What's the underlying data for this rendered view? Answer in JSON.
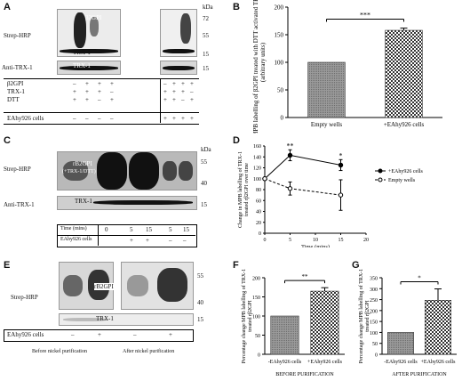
{
  "panels": {
    "A": {
      "letter": "A",
      "kda_unit": "kDa",
      "markers": [
        "72",
        "55",
        "15",
        "15"
      ],
      "row_labels": {
        "strep": "Strep-HRP",
        "anti": "Anti-TRX-1"
      },
      "band_labels": {
        "b2gpi": "β2GPI",
        "trx1": "TRX-1",
        "trx1_anti": "TRX-1"
      },
      "table_rows": [
        {
          "label": "β2GPI",
          "left": [
            "–",
            "+",
            "+",
            "+"
          ],
          "right": [
            "–",
            "+",
            "+",
            "+"
          ]
        },
        {
          "label": "TRX-1",
          "left": [
            "+",
            "+",
            "+",
            "–"
          ],
          "right": [
            "+",
            "+",
            "+",
            "–"
          ]
        },
        {
          "label": "DTT",
          "left": [
            "+",
            "+",
            "–",
            "+"
          ],
          "right": [
            "+",
            "+",
            "–",
            "+"
          ]
        },
        {
          "label": "EAhy926 cells",
          "left": [
            "–",
            "–",
            "–",
            "–"
          ],
          "right": [
            "+",
            "+",
            "+",
            "+"
          ]
        }
      ]
    },
    "C": {
      "letter": "C",
      "kda_unit": "kDa",
      "markers": [
        "55",
        "40",
        "15"
      ],
      "row_labels": {
        "strep": "Strep-HRP",
        "anti": "Anti-TRX-1"
      },
      "band_labels": {
        "rb2gpi": "rB2GPI",
        "rb2gpi_sub": "(+TRX-1/DTT)",
        "trx1": "TRX-1"
      },
      "table_rows": [
        {
          "label": "Time (mins)",
          "values": [
            "0",
            "5",
            "15",
            "5",
            "15"
          ]
        },
        {
          "label": "EAhy926 cells",
          "values": [
            "",
            "+",
            "+",
            "–",
            "–"
          ]
        }
      ]
    },
    "E": {
      "letter": "E",
      "row_label": "Strep-HRP",
      "markers": [
        "55",
        "40",
        "15"
      ],
      "band_labels": {
        "rb2gpi": "rB2GPI",
        "trx1": "TRX-1"
      },
      "cells_label": "EAhy926 cells",
      "cells_values": [
        "–",
        "+",
        "–",
        "+"
      ],
      "captions": [
        "Before nickel purification",
        "After nickel purification"
      ]
    }
  },
  "chart_data": [
    {
      "panel": "B",
      "type": "bar",
      "categories": [
        "Empty wells",
        "+EAhy926 cells"
      ],
      "values": [
        100,
        158
      ],
      "errors": [
        0,
        4
      ],
      "ylabel": "MPB labelling of β2GPI treated with DTT activated TRX-1 (arbitrary units)",
      "ylim": [
        0,
        200
      ],
      "yticks": [
        0,
        50,
        100,
        150,
        200
      ],
      "significance": "***",
      "bar_styles": [
        "grey",
        "checker"
      ]
    },
    {
      "panel": "D",
      "type": "line",
      "x": [
        0,
        5,
        15
      ],
      "xticks": [
        0,
        5,
        10,
        15,
        20
      ],
      "xlabel": "Time (mins)",
      "ylabel": "Change in MPB labelling of TRX-1 treated rβ2GPI over time",
      "ylim": [
        0,
        160
      ],
      "yticks": [
        0,
        20,
        40,
        60,
        80,
        100,
        120,
        140,
        160
      ],
      "series": [
        {
          "name": "+EAhy926 cells",
          "values": [
            100,
            143,
            125
          ],
          "errors": [
            0,
            10,
            10
          ],
          "style": "solid"
        },
        {
          "name": "Empty wells",
          "values": [
            100,
            82,
            70
          ],
          "errors": [
            0,
            12,
            28
          ],
          "style": "dashed"
        }
      ],
      "annotations": [
        {
          "x": 5,
          "text": "**"
        },
        {
          "x": 15,
          "text": "*"
        }
      ],
      "legend": "right"
    },
    {
      "panel": "F",
      "type": "bar",
      "categories": [
        "-EAhy926 cells",
        "+EAhy926 cells"
      ],
      "values": [
        100,
        165
      ],
      "errors": [
        0,
        9
      ],
      "ylabel": "Percentage change MPB labelling of TRX-1 treated rβ2GPI",
      "ylim": [
        0,
        200
      ],
      "yticks": [
        0,
        50,
        100,
        150,
        200
      ],
      "significance": "**",
      "caption": "BEFORE PURIFICATION",
      "bar_styles": [
        "grey",
        "checker"
      ]
    },
    {
      "panel": "G",
      "type": "bar",
      "categories": [
        "-EAhy926 cells",
        "+EAhy926 cells"
      ],
      "values": [
        100,
        247
      ],
      "errors": [
        0,
        52
      ],
      "ylabel": "Percentage change MPB labelling of TRX-1 treated rβ2GPI",
      "ylim": [
        0,
        350
      ],
      "yticks": [
        0,
        50,
        100,
        150,
        200,
        250,
        300,
        350
      ],
      "significance": "*",
      "caption": "AFTER PURIFICATION",
      "bar_styles": [
        "grey",
        "checker"
      ]
    }
  ]
}
